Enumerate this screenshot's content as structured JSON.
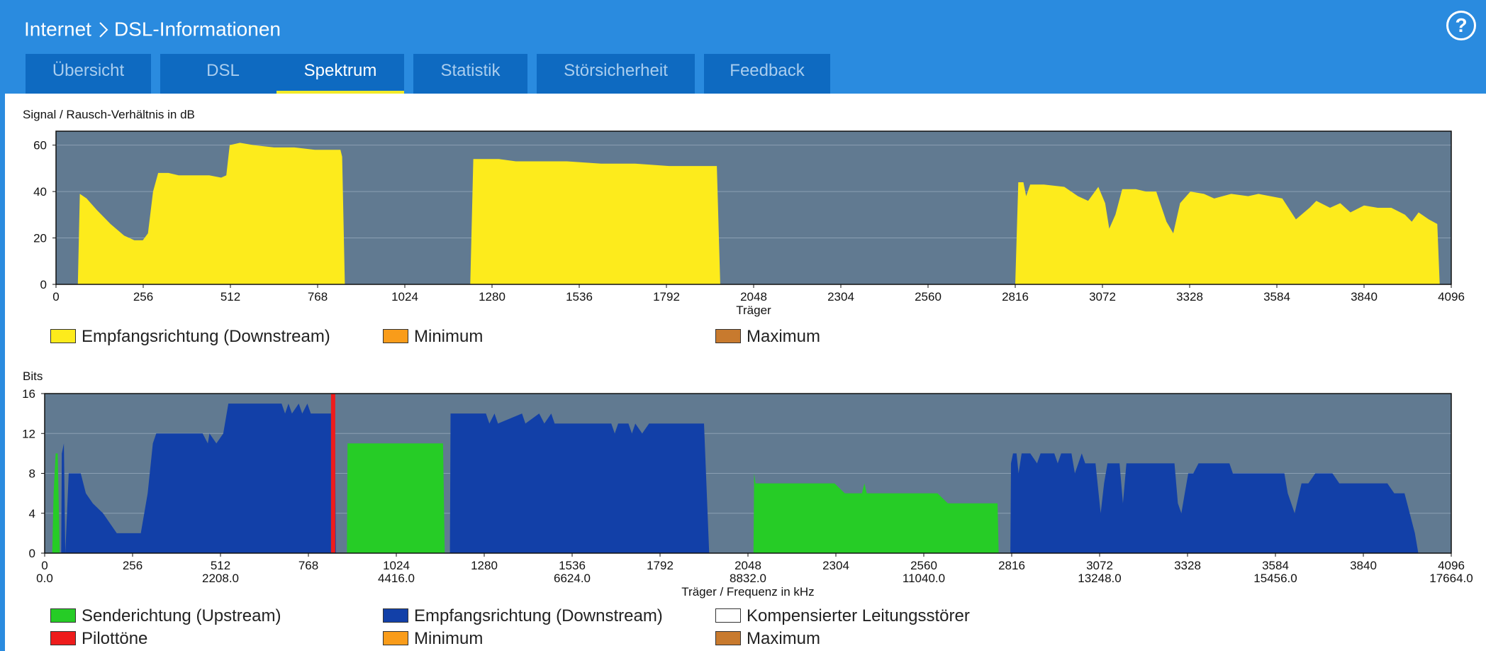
{
  "breadcrumb": {
    "root": "Internet",
    "current": "DSL-Informationen"
  },
  "help": {
    "icon": "help-icon",
    "symbol": "?"
  },
  "tabs": [
    {
      "label": "Übersicht",
      "active": false
    },
    {
      "label": "DSL",
      "active": false
    },
    {
      "label": "Spektrum",
      "active": true
    },
    {
      "label": "Statistik",
      "active": false
    },
    {
      "label": "Störsicherheit",
      "active": false
    },
    {
      "label": "Feedback",
      "active": false
    }
  ],
  "colors": {
    "header": "#2a8bdf",
    "tab_bg": "#0e6ac1",
    "tab_active_underline": "#f2ea28",
    "plot_bg": "#617a91",
    "snr_fill": "#fdeb1c",
    "upstream": "#26cc26",
    "downstream": "#1240a8",
    "pilot": "#ee1c1c"
  },
  "chart_data": [
    {
      "type": "area",
      "title": "Signal / Rausch-Verhältnis in dB",
      "xlabel": "Träger",
      "ylabel": "",
      "xlim": [
        0,
        4096
      ],
      "ylim": [
        0,
        66
      ],
      "xticks": [
        0,
        256,
        512,
        768,
        1024,
        1280,
        1536,
        1792,
        2048,
        2304,
        2560,
        2816,
        3072,
        3328,
        3584,
        3840,
        4096
      ],
      "yticks": [
        0,
        20,
        40,
        60
      ],
      "grid": true,
      "series": [
        {
          "name": "Empfangsrichtung (Downstream)",
          "color": "#fdeb1c",
          "segments": [
            [
              [
                64,
                0
              ],
              [
                70,
                39
              ],
              [
                90,
                37
              ],
              [
                120,
                32
              ],
              [
                160,
                26
              ],
              [
                200,
                21
              ],
              [
                230,
                19
              ],
              [
                255,
                19
              ],
              [
                270,
                22
              ],
              [
                285,
                40
              ],
              [
                300,
                48
              ],
              [
                330,
                48
              ],
              [
                360,
                47
              ],
              [
                400,
                47
              ],
              [
                450,
                47
              ],
              [
                485,
                46
              ],
              [
                500,
                47
              ],
              [
                510,
                60
              ],
              [
                540,
                61
              ],
              [
                580,
                60
              ],
              [
                640,
                59
              ],
              [
                700,
                59
              ],
              [
                760,
                58
              ],
              [
                835,
                58
              ],
              [
                840,
                55
              ],
              [
                848,
                0
              ]
            ],
            [
              [
                1216,
                0
              ],
              [
                1225,
                54
              ],
              [
                1300,
                54
              ],
              [
                1350,
                53
              ],
              [
                1500,
                53
              ],
              [
                1600,
                52
              ],
              [
                1700,
                52
              ],
              [
                1800,
                51
              ],
              [
                1940,
                51
              ],
              [
                1950,
                0
              ]
            ],
            [
              [
                2816,
                0
              ],
              [
                2825,
                44
              ],
              [
                2840,
                44
              ],
              [
                2848,
                38
              ],
              [
                2860,
                43
              ],
              [
                2900,
                43
              ],
              [
                2960,
                42
              ],
              [
                3000,
                38
              ],
              [
                3030,
                36
              ],
              [
                3060,
                42
              ],
              [
                3080,
                35
              ],
              [
                3092,
                24
              ],
              [
                3110,
                30
              ],
              [
                3130,
                41
              ],
              [
                3170,
                41
              ],
              [
                3200,
                40
              ],
              [
                3230,
                40
              ],
              [
                3260,
                27
              ],
              [
                3280,
                22
              ],
              [
                3300,
                35
              ],
              [
                3330,
                40
              ],
              [
                3370,
                39
              ],
              [
                3400,
                37
              ],
              [
                3450,
                39
              ],
              [
                3500,
                38
              ],
              [
                3530,
                39
              ],
              [
                3600,
                37
              ],
              [
                3640,
                28
              ],
              [
                3680,
                33
              ],
              [
                3700,
                36
              ],
              [
                3740,
                33
              ],
              [
                3770,
                35
              ],
              [
                3800,
                31
              ],
              [
                3840,
                34
              ],
              [
                3880,
                33
              ],
              [
                3920,
                33
              ],
              [
                3960,
                30
              ],
              [
                3980,
                27
              ],
              [
                4000,
                31
              ],
              [
                4030,
                28
              ],
              [
                4055,
                26
              ],
              [
                4062,
                0
              ]
            ]
          ]
        }
      ],
      "legend": [
        {
          "label": "Empfangsrichtung (Downstream)",
          "color": "#fdeb1c"
        },
        {
          "label": "Minimum",
          "color": "#f99c1a"
        },
        {
          "label": "Maximum",
          "color": "#c87a2e"
        }
      ]
    },
    {
      "type": "area",
      "title": "Bits",
      "xlabel": "Träger / Frequenz in kHz",
      "ylabel": "",
      "xlim": [
        0,
        4096
      ],
      "ylim": [
        0,
        16
      ],
      "xticks": [
        0,
        256,
        512,
        768,
        1024,
        1280,
        1536,
        1792,
        2048,
        2304,
        2560,
        2816,
        3072,
        3328,
        3584,
        3840,
        4096
      ],
      "freq_ticks": [
        "0.0",
        "2208.0",
        "4416.0",
        "6624.0",
        "8832.0",
        "11040.0",
        "13248.0",
        "15456.0",
        "17664.0"
      ],
      "yticks": [
        0,
        4,
        8,
        12,
        16
      ],
      "grid": true,
      "series": [
        {
          "name": "Senderichtung (Upstream)",
          "color": "#26cc26",
          "segments": [
            [
              [
                22,
                0
              ],
              [
                26,
                6
              ],
              [
                32,
                10
              ],
              [
                38,
                10
              ],
              [
                44,
                0
              ]
            ],
            [
              [
                880,
                0
              ],
              [
                882,
                11
              ],
              [
                1160,
                11
              ],
              [
                1165,
                0
              ]
            ],
            [
              [
                2064,
                0
              ],
              [
                2066,
                8
              ],
              [
                2070,
                7
              ],
              [
                2300,
                7
              ],
              [
                2330,
                6
              ],
              [
                2380,
                6
              ],
              [
                2387,
                7
              ],
              [
                2394,
                6
              ],
              [
                2600,
                6
              ],
              [
                2630,
                5
              ],
              [
                2775,
                5
              ],
              [
                2778,
                0
              ]
            ]
          ]
        },
        {
          "name": "Empfangsrichtung (Downstream)",
          "color": "#1240a8",
          "segments": [
            [
              [
                48,
                0
              ],
              [
                50,
                10
              ],
              [
                56,
                11
              ],
              [
                60,
                0
              ],
              [
                70,
                8
              ],
              [
                105,
                8
              ],
              [
                120,
                6
              ],
              [
                140,
                5
              ],
              [
                170,
                4
              ],
              [
                210,
                2
              ],
              [
                280,
                2
              ],
              [
                300,
                6
              ],
              [
                315,
                11
              ],
              [
                325,
                12
              ],
              [
                460,
                12
              ],
              [
                475,
                11
              ],
              [
                480,
                12
              ],
              [
                500,
                11
              ],
              [
                520,
                12
              ],
              [
                535,
                15
              ],
              [
                690,
                15
              ],
              [
                700,
                14
              ],
              [
                710,
                15
              ],
              [
                720,
                14
              ],
              [
                740,
                15
              ],
              [
                750,
                14
              ],
              [
                765,
                15
              ],
              [
                775,
                14
              ],
              [
                845,
                14
              ],
              [
                848,
                0
              ]
            ],
            [
              [
                1180,
                0
              ],
              [
                1182,
                14
              ],
              [
                1285,
                14
              ],
              [
                1295,
                13
              ],
              [
                1310,
                14
              ],
              [
                1320,
                13
              ],
              [
                1390,
                14
              ],
              [
                1400,
                13
              ],
              [
                1440,
                14
              ],
              [
                1455,
                13
              ],
              [
                1475,
                14
              ],
              [
                1485,
                13
              ],
              [
                1650,
                13
              ],
              [
                1660,
                12
              ],
              [
                1670,
                13
              ],
              [
                1700,
                13
              ],
              [
                1710,
                12
              ],
              [
                1720,
                13
              ],
              [
                1740,
                12
              ],
              [
                1760,
                13
              ],
              [
                1920,
                13
              ],
              [
                1935,
                0
              ]
            ],
            [
              [
                2812,
                0
              ],
              [
                2814,
                9
              ],
              [
                2820,
                10
              ],
              [
                2830,
                10
              ],
              [
                2836,
                8
              ],
              [
                2845,
                10
              ],
              [
                2870,
                10
              ],
              [
                2890,
                9
              ],
              [
                2900,
                10
              ],
              [
                2940,
                10
              ],
              [
                2950,
                9
              ],
              [
                2960,
                10
              ],
              [
                2990,
                10
              ],
              [
                3000,
                8
              ],
              [
                3020,
                10
              ],
              [
                3030,
                9
              ],
              [
                3060,
                9
              ],
              [
                3075,
                4
              ],
              [
                3085,
                7
              ],
              [
                3095,
                9
              ],
              [
                3130,
                9
              ],
              [
                3140,
                5
              ],
              [
                3150,
                9
              ],
              [
                3290,
                9
              ],
              [
                3300,
                5
              ],
              [
                3310,
                4
              ],
              [
                3320,
                6
              ],
              [
                3330,
                8
              ],
              [
                3345,
                8
              ],
              [
                3360,
                9
              ],
              [
                3450,
                9
              ],
              [
                3460,
                8
              ],
              [
                3610,
                8
              ],
              [
                3620,
                6
              ],
              [
                3640,
                4
              ],
              [
                3660,
                7
              ],
              [
                3680,
                7
              ],
              [
                3700,
                8
              ],
              [
                3750,
                8
              ],
              [
                3770,
                7
              ],
              [
                3910,
                7
              ],
              [
                3930,
                6
              ],
              [
                3960,
                6
              ],
              [
                3975,
                4
              ],
              [
                3990,
                2
              ],
              [
                4000,
                0
              ]
            ]
          ]
        },
        {
          "name": "Pilottöne",
          "color": "#ee1c1c",
          "marks": [
            {
              "x": 840,
              "value": 16
            }
          ]
        }
      ],
      "legend": [
        {
          "label": "Senderichtung (Upstream)",
          "color": "#26cc26"
        },
        {
          "label": "Empfangsrichtung (Downstream)",
          "color": "#1240a8"
        },
        {
          "label": "Kompensierter Leitungsstörer",
          "color": "#ffffff"
        },
        {
          "label": "Pilottöne",
          "color": "#ee1c1c"
        },
        {
          "label": "Minimum",
          "color": "#f99c1a"
        },
        {
          "label": "Maximum",
          "color": "#c87a2e"
        }
      ]
    }
  ]
}
